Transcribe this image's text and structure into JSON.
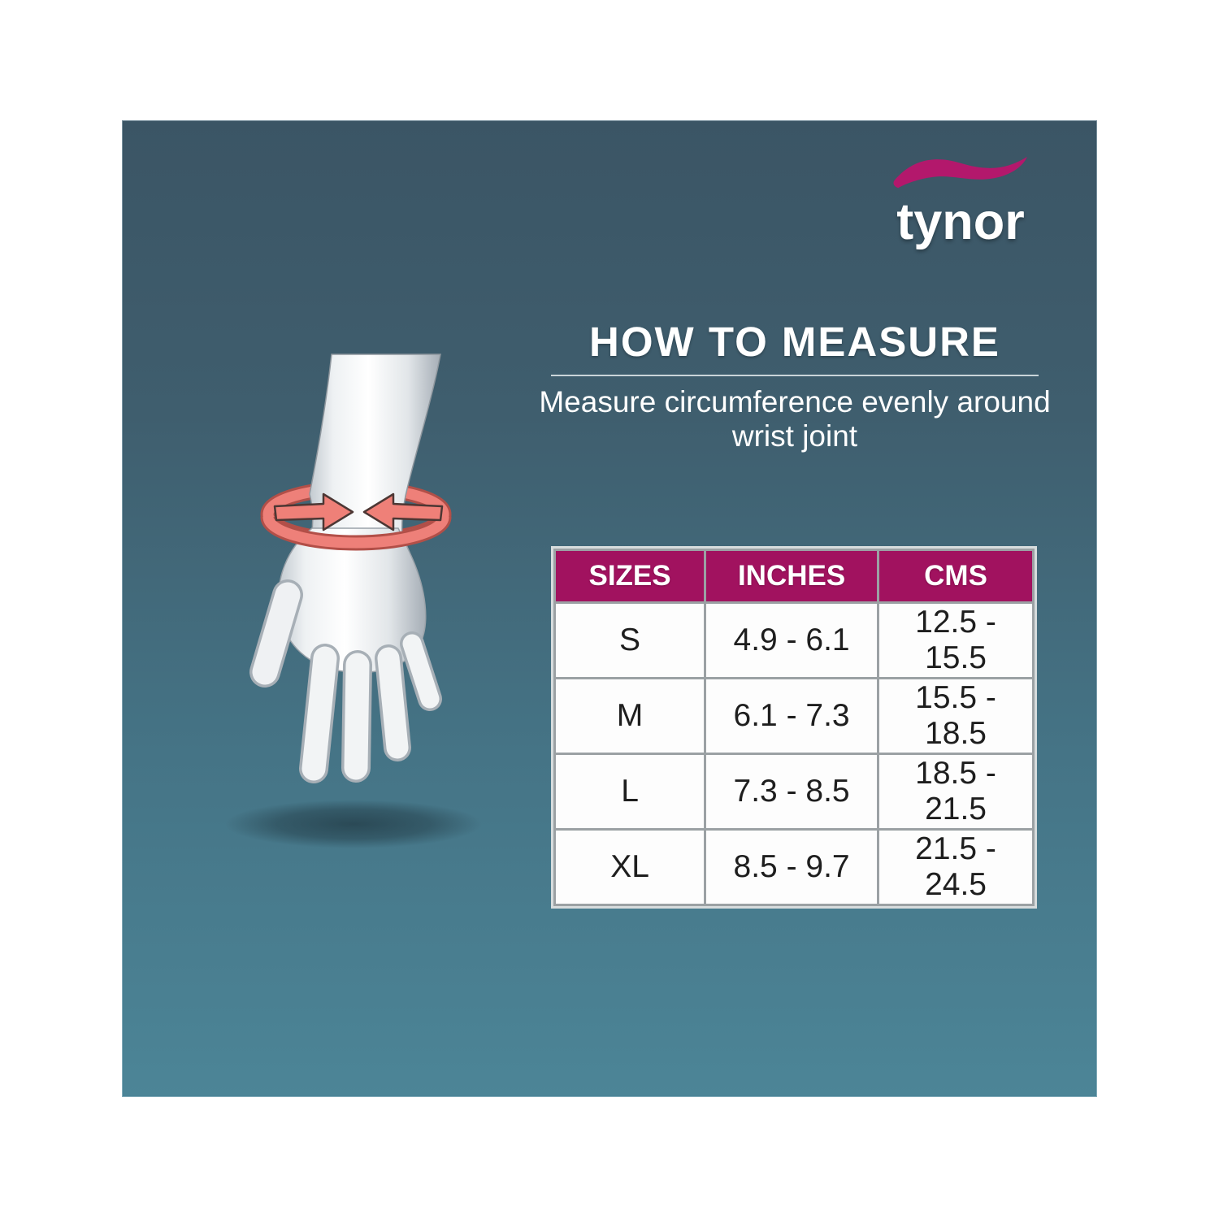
{
  "brand": {
    "name": "tynor",
    "swoosh_icon": "brand-swoosh-icon",
    "swoosh_color": "#B2176B"
  },
  "header": {
    "title": "HOW TO MEASURE",
    "subtitle_line1": "Measure circumference evenly around",
    "subtitle_line2": "wrist joint"
  },
  "illustration": {
    "name": "hand-wrist-measure",
    "description": "3D hand with measuring band and arrows around wrist joint",
    "arrow_color": "#EF827A"
  },
  "chart_data": {
    "type": "table",
    "title": "HOW TO MEASURE",
    "subtitle": "Measure circumference evenly around wrist joint",
    "columns": [
      "SIZES",
      "INCHES",
      "CMS"
    ],
    "rows": [
      [
        "S",
        "4.9 - 6.1",
        "12.5 - 15.5"
      ],
      [
        "M",
        "6.1 - 7.3",
        "15.5 - 18.5"
      ],
      [
        "L",
        "7.3 - 8.5",
        "18.5 - 21.5"
      ],
      [
        "XL",
        "8.5 - 9.7",
        "21.5 - 24.5"
      ]
    ]
  },
  "colors": {
    "card_gradient_top": "#3B5565",
    "card_gradient_bottom": "#4C8597",
    "table_header": "#A1125F",
    "table_grid": "#9BA1A4",
    "text_on_dark": "#FFFFFF"
  }
}
